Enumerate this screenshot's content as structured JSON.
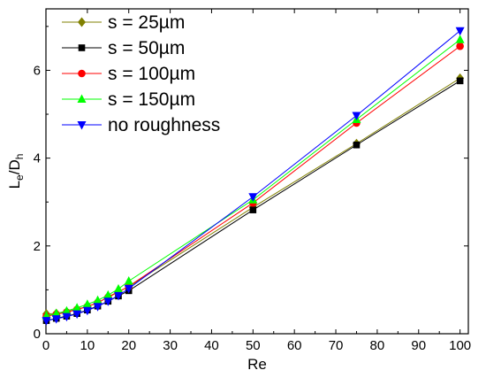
{
  "chart_data": {
    "type": "line",
    "xlabel": "Re",
    "ylabel": {
      "main": "L",
      "sub1": "e",
      "mid": "/D",
      "sub2": "h"
    },
    "xlim": [
      0,
      102
    ],
    "ylim": [
      0,
      7.4
    ],
    "x_ticks": [
      0,
      10,
      20,
      30,
      40,
      50,
      60,
      70,
      80,
      90,
      100
    ],
    "y_ticks": [
      0,
      2,
      4,
      6
    ],
    "grid": false,
    "legend": {
      "placement": "top-left"
    },
    "series": [
      {
        "name": "s = 25µm",
        "color": "#808000",
        "marker": "diamond",
        "x": [
          0.1,
          2.5,
          5,
          7.5,
          10,
          12.5,
          15,
          17.5,
          20,
          50,
          75,
          100
        ],
        "y": [
          0.45,
          0.46,
          0.5,
          0.56,
          0.62,
          0.7,
          0.84,
          0.96,
          1.07,
          2.88,
          4.33,
          5.82
        ]
      },
      {
        "name": "s = 50µm",
        "color": "#000000",
        "marker": "square",
        "x": [
          0.1,
          2.5,
          5,
          7.5,
          10,
          12.5,
          15,
          17.5,
          20,
          50,
          75,
          100
        ],
        "y": [
          0.3,
          0.35,
          0.4,
          0.46,
          0.54,
          0.63,
          0.74,
          0.86,
          0.98,
          2.82,
          4.3,
          5.76
        ]
      },
      {
        "name": "s = 100µm",
        "color": "#ff0000",
        "marker": "circle",
        "x": [
          0.1,
          2.5,
          5,
          7.5,
          10,
          12.5,
          15,
          17.5,
          20,
          50,
          75,
          100
        ],
        "y": [
          0.4,
          0.44,
          0.49,
          0.55,
          0.62,
          0.71,
          0.83,
          0.95,
          1.08,
          2.98,
          4.8,
          6.55
        ]
      },
      {
        "name": "s = 150µm",
        "color": "#00ff00",
        "marker": "triangle-up",
        "x": [
          0.1,
          2.5,
          5,
          7.5,
          10,
          12.5,
          15,
          17.5,
          20,
          50,
          75,
          100
        ],
        "y": [
          0.41,
          0.46,
          0.52,
          0.59,
          0.67,
          0.76,
          0.88,
          1.02,
          1.2,
          3.05,
          4.88,
          6.7
        ]
      },
      {
        "name": "no roughness",
        "color": "#0000ff",
        "marker": "triangle-down",
        "x": [
          0.1,
          2.5,
          5,
          7.5,
          10,
          12.5,
          15,
          17.5,
          20,
          50,
          75,
          100
        ],
        "y": [
          0.3,
          0.34,
          0.39,
          0.45,
          0.53,
          0.62,
          0.74,
          0.87,
          1.03,
          3.12,
          4.97,
          6.9
        ]
      }
    ]
  }
}
